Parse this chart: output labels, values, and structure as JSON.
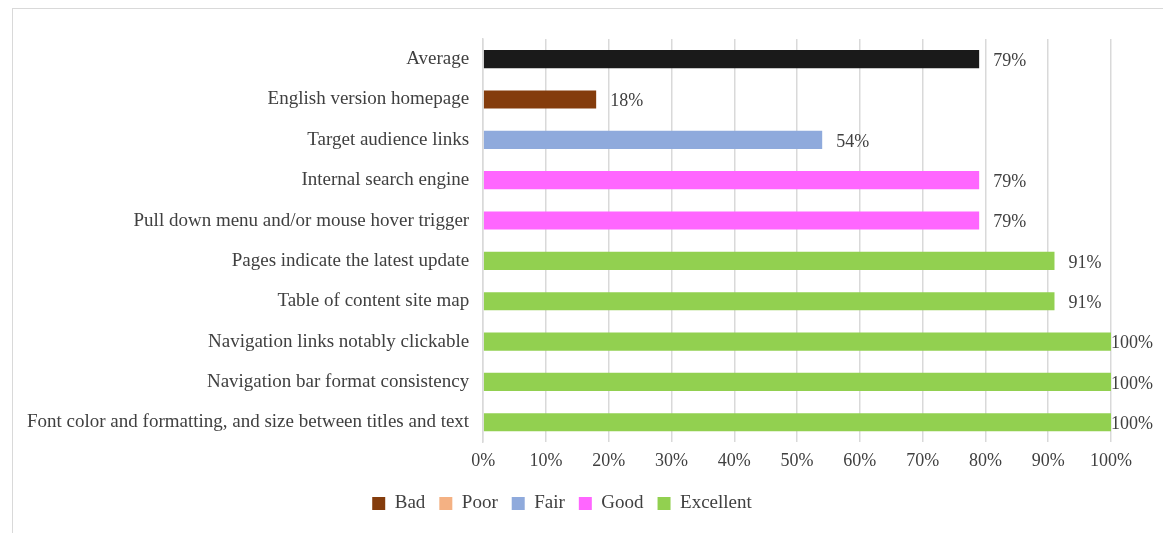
{
  "chart_data": {
    "type": "bar",
    "orientation": "horizontal",
    "stacked": true,
    "categories": [
      "Average",
      "English version homepage",
      "Target audience links",
      "Internal search engine",
      "Pull down menu and/or mouse hover trigger",
      "Pages indicate the latest update",
      "Table of content site map",
      "Navigation links notably clickable",
      "Navigation bar format consistency",
      "Font color and formatting, and size between titles and text"
    ],
    "series": [
      {
        "color": "#1a1a1a",
        "values": [
          79,
          null,
          null,
          null,
          null,
          null,
          null,
          null,
          null,
          null
        ],
        "value_labels": [
          "79%",
          null,
          null,
          null,
          null,
          null,
          null,
          null,
          null,
          null
        ]
      },
      {
        "name": "Bad",
        "color": "#843c0c",
        "values": [
          null,
          18,
          null,
          null,
          null,
          null,
          null,
          null,
          null,
          null
        ],
        "value_labels": [
          null,
          "18%",
          null,
          null,
          null,
          null,
          null,
          null,
          null,
          null
        ]
      },
      {
        "name": "Poor",
        "color": "#f4b183",
        "values": [
          null,
          null,
          null,
          null,
          null,
          null,
          null,
          null,
          null,
          null
        ],
        "value_labels": [
          null,
          null,
          null,
          null,
          null,
          null,
          null,
          null,
          null,
          null
        ]
      },
      {
        "name": "Fair",
        "color": "#8faadc",
        "values": [
          null,
          null,
          54,
          null,
          null,
          null,
          null,
          null,
          null,
          null
        ],
        "value_labels": [
          null,
          null,
          "54%",
          null,
          null,
          null,
          null,
          null,
          null,
          null
        ]
      },
      {
        "name": "Good",
        "color": "#ff66ff",
        "values": [
          null,
          null,
          null,
          79,
          79,
          null,
          null,
          null,
          null,
          null
        ],
        "value_labels": [
          null,
          null,
          null,
          "79%",
          "79%",
          null,
          null,
          null,
          null,
          null
        ]
      },
      {
        "name": "Excellent",
        "color": "#92d050",
        "values": [
          null,
          null,
          null,
          null,
          null,
          91,
          91,
          100,
          100,
          100
        ],
        "value_labels": [
          null,
          null,
          null,
          null,
          null,
          "91%",
          "91%",
          "100%",
          "100%",
          "100%"
        ]
      }
    ],
    "xlim": [
      0,
      100
    ],
    "xticks": [
      {
        "value": 0,
        "label": "0%"
      },
      {
        "value": 10,
        "label": "10%"
      },
      {
        "value": 20,
        "label": "20%"
      },
      {
        "value": 30,
        "label": "30%"
      },
      {
        "value": 40,
        "label": "40%"
      },
      {
        "value": 50,
        "label": "50%"
      },
      {
        "value": 60,
        "label": "60%"
      },
      {
        "value": 70,
        "label": "70%"
      },
      {
        "value": 80,
        "label": "80%"
      },
      {
        "value": 90,
        "label": "90%"
      },
      {
        "value": 100,
        "label": "100%"
      }
    ],
    "grid": "x",
    "legend": "bottom"
  }
}
